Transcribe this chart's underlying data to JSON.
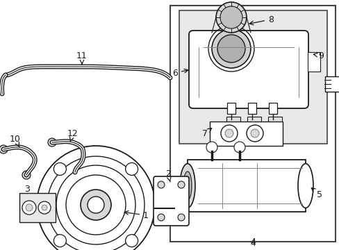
{
  "bg_color": "#ffffff",
  "white": "#ffffff",
  "black": "#1a1a1a",
  "dark_gray": "#444444",
  "light_gray": "#d8d8d8",
  "mid_gray": "#888888",
  "panel_bg": "#e8e8e8",
  "figsize": [
    4.89,
    3.6
  ],
  "dpi": 100
}
